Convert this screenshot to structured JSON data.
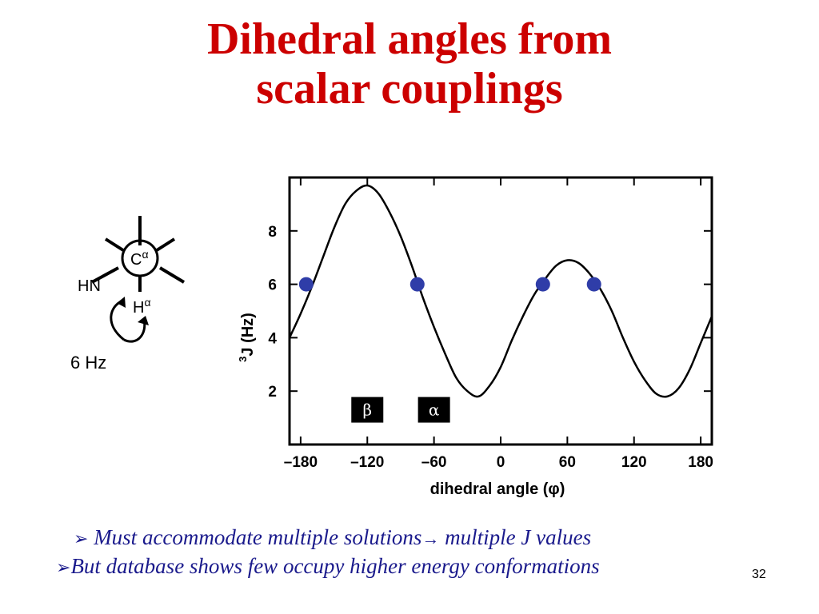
{
  "title": {
    "line1": "Dihedral angles from",
    "line2": "scalar couplings"
  },
  "newman": {
    "hn_label": "HN",
    "ca_label": "C",
    "ca_superscript": "α",
    "ha_label": "H",
    "ha_superscript": "α",
    "coupling_label": "6 Hz"
  },
  "chart_data": {
    "type": "line",
    "title": "",
    "xlabel": "dihedral angle (φ)",
    "ylabel_superscript": "3",
    "ylabel": "J (Hz)",
    "xlim": [
      -190,
      190
    ],
    "ylim": [
      0,
      10
    ],
    "x_ticks": [
      -180,
      -120,
      -60,
      0,
      60,
      120,
      180
    ],
    "x_tick_labels": [
      "–180",
      "–120",
      "–60",
      "0",
      "60",
      "120",
      "180"
    ],
    "y_ticks": [
      2,
      4,
      6,
      8
    ],
    "y_tick_labels": [
      "2",
      "4",
      "6",
      "8"
    ],
    "curve": {
      "x": [
        -190,
        -180,
        -170,
        -160,
        -150,
        -140,
        -130,
        -120,
        -110,
        -100,
        -90,
        -80,
        -70,
        -60,
        -50,
        -40,
        -30,
        -20,
        -10,
        0,
        10,
        20,
        30,
        40,
        50,
        60,
        70,
        80,
        90,
        100,
        110,
        120,
        130,
        140,
        150,
        160,
        170,
        180,
        190
      ],
      "y": [
        4.0,
        4.9,
        5.9,
        7.0,
        8.1,
        9.0,
        9.5,
        9.7,
        9.4,
        8.7,
        7.8,
        6.7,
        5.5,
        4.4,
        3.4,
        2.5,
        2.0,
        1.8,
        2.2,
        2.9,
        3.9,
        4.8,
        5.6,
        6.2,
        6.7,
        6.9,
        6.8,
        6.4,
        5.8,
        5.0,
        4.0,
        3.1,
        2.4,
        1.9,
        1.8,
        2.1,
        2.8,
        3.8,
        4.8
      ]
    },
    "points": {
      "color": "#2f3da8",
      "x": [
        -175,
        -75,
        38,
        84
      ],
      "y": [
        6,
        6,
        6,
        6
      ]
    },
    "regions": [
      {
        "label": "β",
        "x": -120
      },
      {
        "label": "α",
        "x": -60
      }
    ],
    "grid": false
  },
  "bullets": [
    {
      "marker": "➢",
      "text_a": "Must accommodate multiple solutions",
      "arrow": "→",
      "text_b": "multiple J values"
    },
    {
      "marker": "➢",
      "text": "But database shows few occupy higher energy conformations"
    }
  ],
  "slide_number": "32",
  "colors": {
    "title": "#cc0000",
    "bullets": "#1a1a8c",
    "points": "#2f3da8"
  }
}
